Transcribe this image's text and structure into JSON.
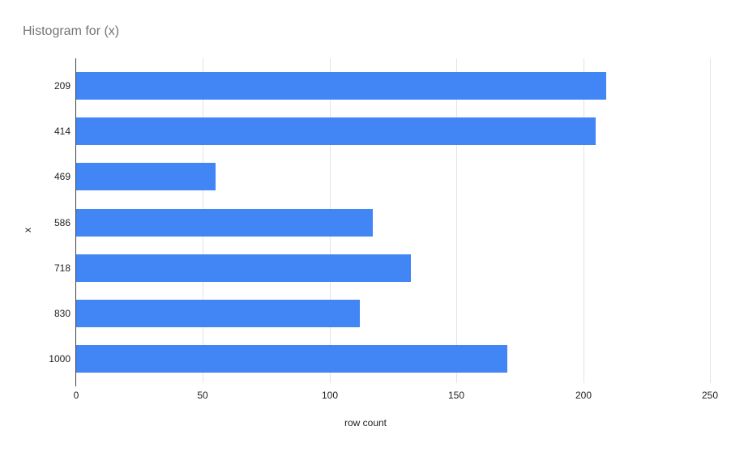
{
  "title": "Histogram for (x)",
  "colors": {
    "bar": "#4285f4",
    "title_text": "#757575",
    "axis_text": "#222222",
    "gridline": "#e3e3e3",
    "axis_line": "#424242",
    "background": "#ffffff"
  },
  "chart_data": {
    "type": "bar",
    "orientation": "horizontal",
    "title": "Histogram for (x)",
    "categories": [
      "209",
      "414",
      "469",
      "586",
      "718",
      "830",
      "1000"
    ],
    "values": [
      209,
      205,
      55,
      117,
      132,
      112,
      170
    ],
    "series_name": "row count",
    "xlabel": "row count",
    "ylabel": "x",
    "xticks": [
      0,
      50,
      100,
      150,
      200,
      250
    ],
    "xlim": [
      0,
      258
    ],
    "grid": true,
    "legend": false
  }
}
